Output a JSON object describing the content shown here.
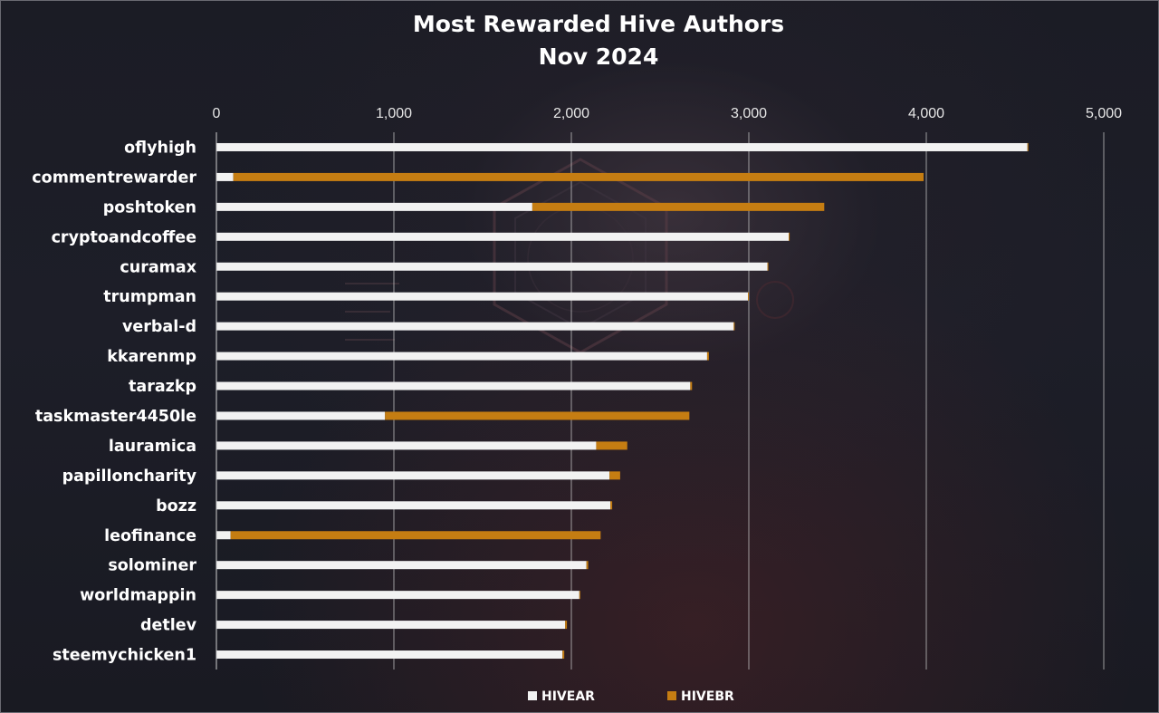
{
  "chart_data": {
    "type": "bar",
    "orientation": "horizontal",
    "stacked": true,
    "title": "Most Rewarded Hive Authors",
    "subtitle": "Nov 2024",
    "xlim": [
      0,
      5000
    ],
    "x_ticks": [
      "0",
      "1,000",
      "2,000",
      "3,000",
      "4,000",
      "5,000"
    ],
    "x_tick_values": [
      0,
      1000,
      2000,
      3000,
      4000,
      5000
    ],
    "x_axis_position": "top",
    "grid": true,
    "legend_position": "bottom",
    "categories": [
      "oflyhigh",
      "commentrewarder",
      "poshtoken",
      "cryptoandcoffee",
      "curamax",
      "trumpman",
      "verbal-d",
      "kkarenmp",
      "tarazkp",
      "taskmaster4450le",
      "lauramica",
      "papilloncharity",
      "bozz",
      "leofinance",
      "solominer",
      "worldmappin",
      "detlev",
      "steemychicken1"
    ],
    "series": [
      {
        "name": "HIVEAR",
        "color": "#f2f2f2",
        "values": [
          4570,
          95,
          1780,
          3225,
          3105,
          2995,
          2915,
          2765,
          2670,
          950,
          2140,
          2215,
          2220,
          80,
          2085,
          2045,
          1965,
          1950
        ]
      },
      {
        "name": "HIVEBR",
        "color": "#c57d12",
        "values": [
          5,
          3890,
          1645,
          5,
          5,
          5,
          5,
          10,
          10,
          1715,
          175,
          60,
          10,
          2085,
          10,
          5,
          10,
          10
        ]
      }
    ]
  }
}
